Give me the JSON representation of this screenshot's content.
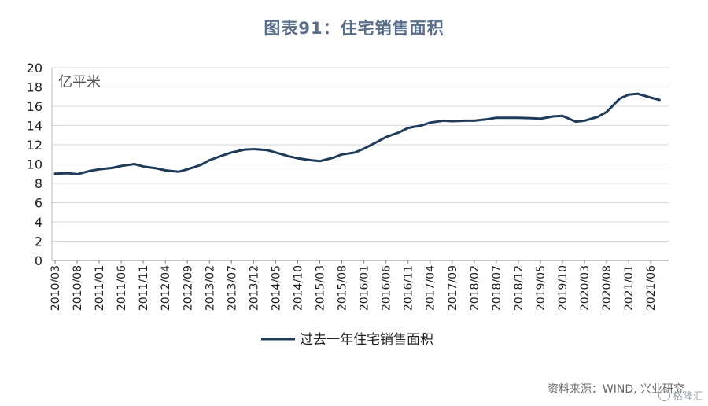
{
  "chart_data": {
    "type": "line",
    "title": "图表91：住宅销售面积",
    "unit_label": "亿平米",
    "ylim": [
      0,
      20
    ],
    "yticks": [
      0,
      2,
      4,
      6,
      8,
      10,
      12,
      14,
      16,
      18,
      20
    ],
    "grid": true,
    "legend_position": "bottom",
    "x_tick_labels": [
      "2010/03",
      "2010/08",
      "2011/01",
      "2011/06",
      "2011/11",
      "2012/04",
      "2012/09",
      "2013/02",
      "2013/07",
      "2013/12",
      "2014/05",
      "2014/10",
      "2015/03",
      "2015/08",
      "2016/01",
      "2016/06",
      "2016/11",
      "2017/04",
      "2017/09",
      "2018/02",
      "2018/07",
      "2018/12",
      "2019/05",
      "2019/10",
      "2020/03",
      "2020/08",
      "2021/01",
      "2021/06"
    ],
    "series": [
      {
        "name": "过去一年住宅销售面积",
        "color": "#1f3b5a",
        "points": [
          [
            "2010/03",
            9.0
          ],
          [
            "2010/06",
            9.05
          ],
          [
            "2010/08",
            8.95
          ],
          [
            "2010/11",
            9.3
          ],
          [
            "2011/01",
            9.45
          ],
          [
            "2011/04",
            9.6
          ],
          [
            "2011/06",
            9.8
          ],
          [
            "2011/09",
            10.0
          ],
          [
            "2011/11",
            9.75
          ],
          [
            "2012/02",
            9.55
          ],
          [
            "2012/04",
            9.35
          ],
          [
            "2012/07",
            9.2
          ],
          [
            "2012/09",
            9.45
          ],
          [
            "2012/12",
            9.9
          ],
          [
            "2013/02",
            10.4
          ],
          [
            "2013/05",
            10.9
          ],
          [
            "2013/07",
            11.2
          ],
          [
            "2013/10",
            11.5
          ],
          [
            "2013/12",
            11.55
          ],
          [
            "2014/03",
            11.45
          ],
          [
            "2014/05",
            11.2
          ],
          [
            "2014/08",
            10.8
          ],
          [
            "2014/10",
            10.6
          ],
          [
            "2015/01",
            10.4
          ],
          [
            "2015/03",
            10.3
          ],
          [
            "2015/06",
            10.65
          ],
          [
            "2015/08",
            11.0
          ],
          [
            "2015/11",
            11.2
          ],
          [
            "2016/01",
            11.6
          ],
          [
            "2016/04",
            12.3
          ],
          [
            "2016/06",
            12.8
          ],
          [
            "2016/09",
            13.3
          ],
          [
            "2016/11",
            13.75
          ],
          [
            "2017/02",
            14.0
          ],
          [
            "2017/04",
            14.3
          ],
          [
            "2017/07",
            14.5
          ],
          [
            "2017/09",
            14.45
          ],
          [
            "2017/12",
            14.5
          ],
          [
            "2018/02",
            14.5
          ],
          [
            "2018/05",
            14.65
          ],
          [
            "2018/07",
            14.8
          ],
          [
            "2018/10",
            14.8
          ],
          [
            "2018/12",
            14.8
          ],
          [
            "2019/03",
            14.75
          ],
          [
            "2019/05",
            14.7
          ],
          [
            "2019/08",
            14.95
          ],
          [
            "2019/10",
            15.0
          ],
          [
            "2020/01",
            14.4
          ],
          [
            "2020/03",
            14.5
          ],
          [
            "2020/06",
            14.9
          ],
          [
            "2020/08",
            15.4
          ],
          [
            "2020/11",
            16.8
          ],
          [
            "2021/01",
            17.2
          ],
          [
            "2021/03",
            17.3
          ],
          [
            "2021/06",
            16.9
          ],
          [
            "2021/08",
            16.65
          ]
        ]
      }
    ],
    "source": "资料来源：WIND, 兴业研究"
  },
  "watermark": "格隆汇"
}
